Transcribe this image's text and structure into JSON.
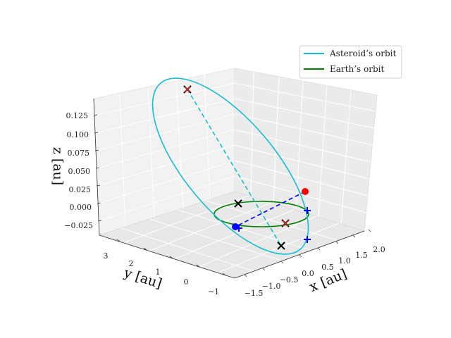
{
  "chart_data": {
    "type": "line",
    "projection": "3d",
    "xlabel": "x [au]",
    "ylabel": "y [au]",
    "zlabel": "z [au]",
    "x_ticks": [
      "−1.5",
      "−1.0",
      "−0.5",
      "0.0",
      "0.5",
      "1.0",
      "1.5",
      "2.0"
    ],
    "y_ticks": [
      "−1",
      "0",
      "1",
      "2",
      "3"
    ],
    "z_ticks": [
      "−0.025",
      "0.000",
      "0.025",
      "0.050",
      "0.075",
      "0.100",
      "0.125"
    ],
    "grid": true,
    "legend": {
      "placement": "top-right",
      "entries": [
        {
          "label": "Asteroid’s orbit",
          "color": "#17becf"
        },
        {
          "label": "Earth’s orbit",
          "color": "#008000"
        }
      ]
    },
    "series": [
      {
        "name": "Asteroid’s orbit",
        "color": "#17becf",
        "style": "solid"
      },
      {
        "name": "Earth’s orbit",
        "color": "#008000",
        "style": "solid"
      }
    ],
    "markers": {
      "cross_black": "#000000",
      "cross_red": "#d62728",
      "dot_red": "#ff0000",
      "dot_blue": "#0000ff",
      "plus_blue": "#0000ff"
    }
  }
}
